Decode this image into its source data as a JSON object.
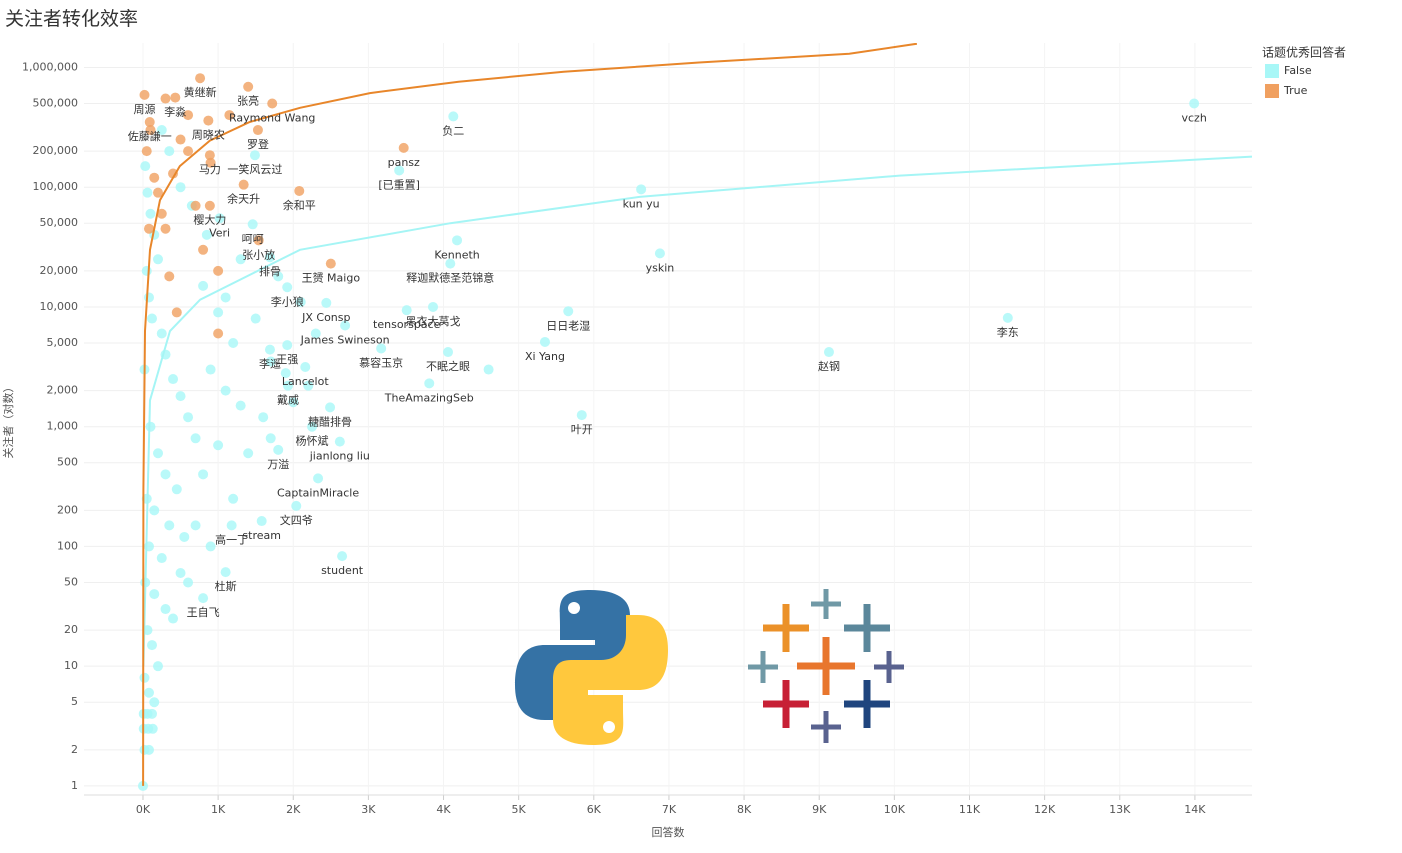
{
  "chart_data": {
    "type": "scatter",
    "title": "关注者转化效率",
    "x_label": "回答数",
    "y_label": "关注者（对数）",
    "xlim": [
      -785,
      14760
    ],
    "ylim": [
      0.84,
      1600000
    ],
    "y_log": true,
    "grid": true,
    "xticks": [
      {
        "value": 0,
        "label": "0K"
      },
      {
        "value": 1000,
        "label": "1K"
      },
      {
        "value": 2000,
        "label": "2K"
      },
      {
        "value": 3000,
        "label": "3K"
      },
      {
        "value": 4000,
        "label": "4K"
      },
      {
        "value": 5000,
        "label": "5K"
      },
      {
        "value": 6000,
        "label": "6K"
      },
      {
        "value": 7000,
        "label": "7K"
      },
      {
        "value": 8000,
        "label": "8K"
      },
      {
        "value": 9000,
        "label": "9K"
      },
      {
        "value": 10000,
        "label": "10K"
      },
      {
        "value": 11000,
        "label": "11K"
      },
      {
        "value": 12000,
        "label": "12K"
      },
      {
        "value": 13000,
        "label": "13K"
      },
      {
        "value": 14000,
        "label": "14K"
      }
    ],
    "yticks": [
      1,
      2,
      5,
      10,
      20,
      50,
      100,
      200,
      500,
      {
        "value": 1000,
        "label": "1,000"
      },
      {
        "value": 2000,
        "label": "2,000"
      },
      {
        "value": 5000,
        "label": "5,000"
      },
      {
        "value": 10000,
        "label": "10,000"
      },
      {
        "value": 20000,
        "label": "20,000"
      },
      {
        "value": 50000,
        "label": "50,000"
      },
      {
        "value": 100000,
        "label": "100,000"
      },
      {
        "value": 200000,
        "label": "200,000"
      },
      {
        "value": 500000,
        "label": "500,000"
      },
      {
        "value": 1000000,
        "label": "1,000,000"
      }
    ],
    "legend_title": "话题优秀回答者",
    "legend_position": "right",
    "series": [
      {
        "name": "False",
        "color": "#a8f7f7",
        "x": [
          30,
          60,
          100,
          150,
          200,
          50,
          80,
          120,
          250,
          300,
          20,
          400,
          500,
          600,
          100,
          700,
          200,
          300,
          450,
          50,
          150,
          350,
          550,
          80,
          250,
          500,
          30,
          150,
          300,
          60,
          120,
          200,
          20,
          80,
          150,
          10,
          60,
          120,
          10,
          70,
          130,
          20,
          80,
          0,
          800,
          1000,
          1200,
          900,
          1100,
          1300,
          1000,
          800,
          1200,
          700,
          900,
          600,
          400,
          1500,
          1700,
          1600,
          1400,
          1100,
          650,
          350,
          500,
          250,
          850,
          1300,
          1800,
          2100,
          2300,
          1900,
          2000,
          1700,
          2200,
          13990,
          4130,
          3410,
          6630,
          4180,
          6880,
          1490,
          1020,
          1460,
          1690,
          4090,
          1920,
          2440,
          3860,
          3510,
          5660,
          11510,
          2690,
          5350,
          9130,
          1920,
          1690,
          3170,
          4060,
          4600,
          3810,
          2160,
          1930,
          5840,
          2490,
          2250,
          1800,
          2620,
          2330,
          2040,
          1580,
          1180,
          2650,
          1100,
          800
        ],
        "values": [
          150000,
          90000,
          60000,
          40000,
          25000,
          20000,
          12000,
          8000,
          6000,
          4000,
          3000,
          2500,
          1800,
          1200,
          1000,
          800,
          600,
          400,
          300,
          250,
          200,
          150,
          120,
          100,
          80,
          60,
          50,
          40,
          30,
          20,
          15,
          10,
          8,
          6,
          5,
          4,
          4,
          4,
          3,
          3,
          3,
          2,
          2,
          1,
          15000,
          9000,
          5000,
          3000,
          2000,
          1500,
          700,
          400,
          250,
          150,
          100,
          50,
          25,
          8000,
          3500,
          1200,
          600,
          12000,
          70000,
          200000,
          100000,
          300000,
          40000,
          25000,
          18000,
          11000,
          6000,
          2800,
          1600,
          800,
          2200,
          500000,
          390000,
          138000,
          96000,
          36000,
          28000,
          185000,
          55000,
          49000,
          26000,
          23000,
          14600,
          10800,
          10000,
          9400,
          9200,
          8100,
          7000,
          5100,
          4200,
          4800,
          4400,
          4500,
          4200,
          3000,
          2300,
          3150,
          2200,
          1250,
          1450,
          1000,
          640,
          750,
          370,
          218,
          163,
          150,
          83,
          61,
          37
        ],
        "labels": [
          null,
          null,
          null,
          null,
          null,
          null,
          null,
          null,
          null,
          null,
          null,
          null,
          null,
          null,
          null,
          null,
          null,
          null,
          null,
          null,
          null,
          null,
          null,
          null,
          null,
          null,
          null,
          null,
          null,
          null,
          null,
          null,
          null,
          null,
          null,
          null,
          null,
          null,
          null,
          null,
          null,
          null,
          null,
          null,
          null,
          null,
          null,
          null,
          null,
          null,
          null,
          null,
          null,
          null,
          null,
          null,
          null,
          null,
          null,
          null,
          null,
          null,
          null,
          null,
          null,
          null,
          null,
          null,
          null,
          null,
          null,
          null,
          null,
          null,
          null,
          "vczh",
          "负二",
          "[已重置]",
          "kun yu",
          "Kenneth",
          "yskin",
          "一笑风云过",
          "Veri",
          "呵呵",
          "排骨",
          "释迦默德圣范锦意",
          "李小狼",
          "JX Consp",
          "黑衣大莴戈",
          "tensorspace",
          "日日老湿",
          "李东",
          "James Swineson",
          "Xi Yang",
          "赵钢",
          "王强",
          "李遥",
          "慕容玉京",
          "不眠之眼",
          null,
          "TheAmazingSeb",
          "Lancelot",
          "戴威",
          "叶开",
          "糖醋排骨",
          "杨怀斌",
          "万溢",
          "jianlong liu",
          "CaptainMiracle",
          "文四爷",
          "stream",
          "高一丁",
          "student",
          "杜斯",
          "王自飞"
        ],
        "trend": {
          "x": [
            5,
            27,
            93,
            360,
            760,
            2090,
            4090,
            6610,
            10070,
            14760
          ],
          "values": [
            10,
            35,
            1660,
            6300,
            11500,
            30000,
            50000,
            83000,
            125000,
            180000
          ]
        }
      },
      {
        "name": "True",
        "color": "#f0a060",
        "x": [
          50,
          100,
          150,
          200,
          250,
          300,
          80,
          400,
          500,
          600,
          700,
          800,
          1000,
          350,
          450,
          1000,
          600,
          300,
          900,
          1150,
          20,
          760,
          430,
          1400,
          1720,
          90,
          870,
          1530,
          3470,
          890,
          1340,
          2080,
          890,
          1540,
          2500
        ],
        "values": [
          200000,
          300000,
          120000,
          90000,
          60000,
          45000,
          45000,
          130000,
          250000,
          200000,
          70000,
          30000,
          20000,
          18000,
          9000,
          6000,
          400000,
          550000,
          160000,
          400000,
          590000,
          813000,
          560000,
          690000,
          500000,
          350000,
          360000,
          300000,
          213000,
          185000,
          105000,
          93000,
          70000,
          36000,
          23000
        ],
        "labels": [
          null,
          null,
          null,
          null,
          null,
          null,
          null,
          null,
          null,
          null,
          null,
          null,
          null,
          null,
          null,
          null,
          null,
          null,
          null,
          null,
          "周源",
          "黄继新",
          "李淼",
          "张亮",
          "Raymond Wang",
          "佐藤謙一",
          "周晓农",
          "罗登",
          "pansz",
          "马力",
          "余天升",
          "余和平",
          "樱大力",
          "张小放",
          "王赟 Maigo"
        ],
        "trend": {
          "x": [
            1,
            5,
            27,
            93,
            226,
            490,
            890,
            1420,
            2090,
            3020,
            4200,
            5600,
            7400,
            9400,
            10300
          ],
          "values": [
            1,
            300,
            6300,
            30000,
            78000,
            150000,
            245000,
            350000,
            460000,
            610000,
            760000,
            920000,
            1100000,
            1300000,
            1580000
          ]
        }
      }
    ]
  }
}
